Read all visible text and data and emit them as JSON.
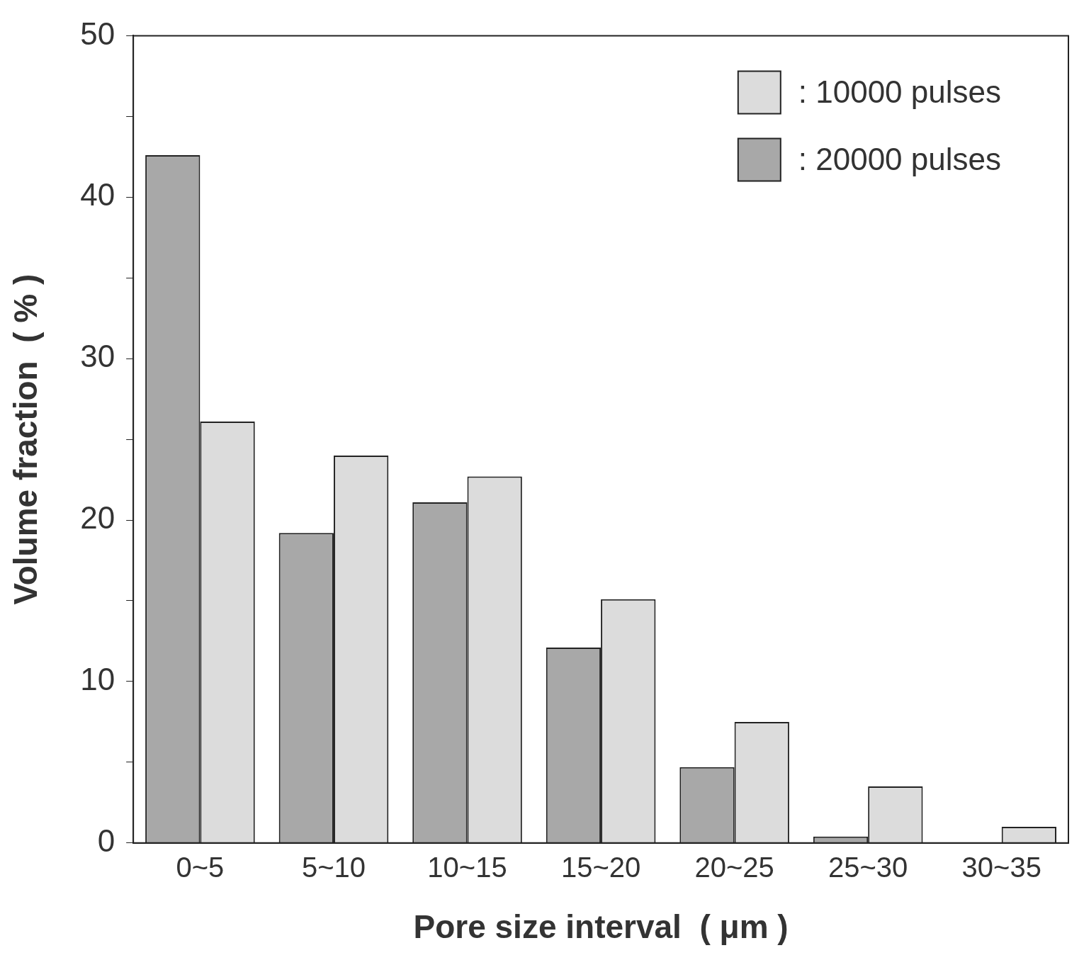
{
  "chart_data": {
    "type": "bar",
    "xlabel": "Pore size interval  ( μm )",
    "ylabel": "Volume fraction  ( % )",
    "categories": [
      "0~5",
      "5~10",
      "10~15",
      "15~20",
      "20~25",
      "25~30",
      "30~35"
    ],
    "series": [
      {
        "name": ": 20000 pulses",
        "color": "#a8a8a8",
        "values": [
          42.6,
          19.2,
          21.1,
          12.1,
          4.7,
          0.4,
          0
        ]
      },
      {
        "name": ": 10000 pulses",
        "color": "#dcdcdc",
        "values": [
          26.1,
          24.0,
          22.7,
          15.1,
          7.5,
          3.5,
          1.0
        ]
      }
    ],
    "ylim": [
      0,
      50
    ],
    "yticks": [
      0,
      {
        "value": 5,
        "label": null
      },
      10,
      {
        "value": 15,
        "label": null
      },
      20,
      {
        "value": 25,
        "label": null
      },
      30,
      {
        "value": 35,
        "label": null
      },
      40,
      {
        "value": 45,
        "label": null
      },
      50
    ],
    "legend": "top right",
    "grid": false
  }
}
